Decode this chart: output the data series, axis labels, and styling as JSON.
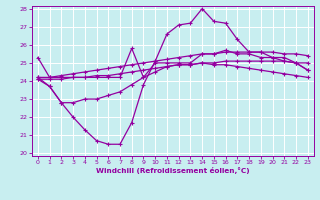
{
  "x": [
    0,
    1,
    2,
    3,
    4,
    5,
    6,
    7,
    8,
    9,
    10,
    11,
    12,
    13,
    14,
    15,
    16,
    17,
    18,
    19,
    20,
    21,
    22,
    23
  ],
  "line_top": [
    25.3,
    24.2,
    24.2,
    24.2,
    24.2,
    24.2,
    24.2,
    24.2,
    25.8,
    24.2,
    25.0,
    25.0,
    25.0,
    25.0,
    25.5,
    25.5,
    25.7,
    25.5,
    25.5,
    25.3,
    25.3,
    25.3,
    25.0,
    24.6
  ],
  "line_upper_smooth": [
    24.2,
    24.2,
    24.3,
    24.4,
    24.5,
    24.6,
    24.7,
    24.8,
    24.9,
    25.0,
    25.1,
    25.2,
    25.3,
    25.4,
    25.5,
    25.5,
    25.6,
    25.6,
    25.6,
    25.6,
    25.6,
    25.5,
    25.5,
    25.4
  ],
  "line_lower_smooth": [
    24.1,
    24.1,
    24.1,
    24.2,
    24.2,
    24.3,
    24.3,
    24.4,
    24.5,
    24.6,
    24.7,
    24.8,
    24.9,
    24.9,
    25.0,
    25.0,
    25.1,
    25.1,
    25.1,
    25.1,
    25.1,
    25.1,
    25.0,
    25.0
  ],
  "line_jagged": [
    24.2,
    23.7,
    22.8,
    22.0,
    21.3,
    20.7,
    20.5,
    20.5,
    21.7,
    23.8,
    25.1,
    26.6,
    27.1,
    27.2,
    28.0,
    27.3,
    27.2,
    26.3,
    25.6,
    25.6,
    25.3,
    25.1,
    25.0,
    24.6
  ],
  "line_bottom": [
    24.1,
    23.7,
    22.8,
    22.8,
    23.0,
    23.0,
    23.2,
    23.4,
    23.8,
    24.2,
    24.5,
    24.8,
    24.9,
    24.9,
    25.0,
    24.9,
    24.9,
    24.8,
    24.7,
    24.6,
    24.5,
    24.4,
    24.3,
    24.2
  ],
  "ylim": [
    20,
    28
  ],
  "xlim": [
    -0.5,
    23.5
  ],
  "yticks": [
    20,
    21,
    22,
    23,
    24,
    25,
    26,
    27,
    28
  ],
  "xticks": [
    0,
    1,
    2,
    3,
    4,
    5,
    6,
    7,
    8,
    9,
    10,
    11,
    12,
    13,
    14,
    15,
    16,
    17,
    18,
    19,
    20,
    21,
    22,
    23
  ],
  "xlabel": "Windchill (Refroidissement éolien,°C)",
  "line_color": "#9400a0",
  "bg_color": "#c8eef0",
  "grid_color": "#ffffff"
}
